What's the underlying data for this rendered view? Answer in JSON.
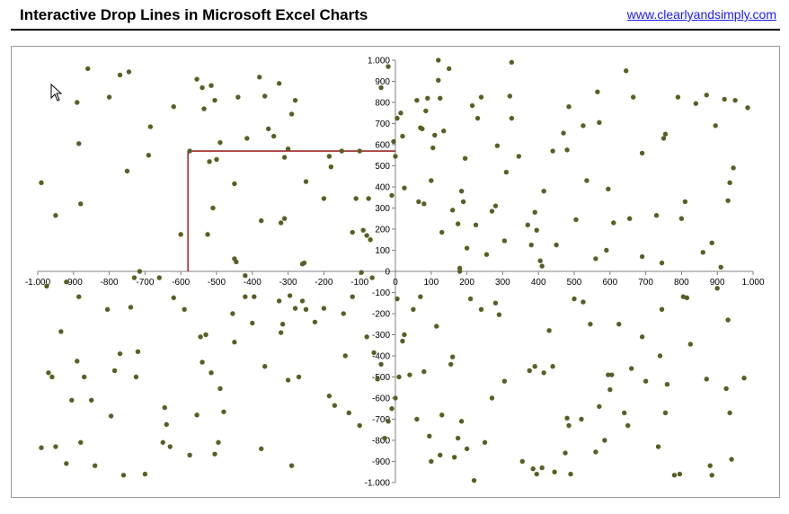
{
  "header": {
    "title": "Interactive Drop Lines in Microsoft Excel Charts",
    "link": "www.clearlyandsimply.com"
  },
  "colors": {
    "marker": "#5b5e23",
    "dropline": "#8b0000",
    "axis": "#808080"
  },
  "chart_data": {
    "type": "scatter",
    "title": "",
    "xlabel": "",
    "ylabel": "",
    "xlim": [
      -1000,
      1000
    ],
    "ylim": [
      -1000,
      1000
    ],
    "grid": false,
    "x_ticks": [
      "-1.000",
      "-900",
      "-800",
      "-700",
      "-600",
      "-500",
      "-400",
      "-300",
      "-200",
      "-100",
      "0",
      "100",
      "200",
      "300",
      "400",
      "500",
      "600",
      "700",
      "800",
      "900",
      "1.000"
    ],
    "y_ticks": [
      "1.000",
      "900",
      "800",
      "700",
      "600",
      "500",
      "400",
      "300",
      "200",
      "100",
      "0",
      "-100",
      "-200",
      "-300",
      "-400",
      "-500",
      "-600",
      "-700",
      "-800",
      "-900",
      "-1.000"
    ],
    "highlight_point": {
      "x": -580,
      "y": 570
    },
    "points": [
      [
        -990,
        420
      ],
      [
        -950,
        265
      ],
      [
        -920,
        -50
      ],
      [
        -890,
        800
      ],
      [
        -885,
        605
      ],
      [
        -880,
        320
      ],
      [
        -860,
        960
      ],
      [
        -800,
        825
      ],
      [
        -770,
        930
      ],
      [
        -750,
        475
      ],
      [
        -745,
        945
      ],
      [
        -730,
        -30
      ],
      [
        -715,
        0
      ],
      [
        -690,
        550
      ],
      [
        -685,
        685
      ],
      [
        -620,
        780
      ],
      [
        -600,
        175
      ],
      [
        -575,
        570
      ],
      [
        -555,
        910
      ],
      [
        -540,
        870
      ],
      [
        -535,
        770
      ],
      [
        -525,
        175
      ],
      [
        -520,
        520
      ],
      [
        -515,
        880
      ],
      [
        -510,
        300
      ],
      [
        -505,
        810
      ],
      [
        -500,
        530
      ],
      [
        -490,
        610
      ],
      [
        -450,
        415
      ],
      [
        -450,
        60
      ],
      [
        -445,
        45
      ],
      [
        -440,
        825
      ],
      [
        -420,
        -20
      ],
      [
        -415,
        630
      ],
      [
        -380,
        920
      ],
      [
        -375,
        240
      ],
      [
        -365,
        830
      ],
      [
        -355,
        675
      ],
      [
        -340,
        640
      ],
      [
        -325,
        890
      ],
      [
        -320,
        230
      ],
      [
        -310,
        540
      ],
      [
        -310,
        250
      ],
      [
        -300,
        580
      ],
      [
        -290,
        745
      ],
      [
        -280,
        810
      ],
      [
        -260,
        35
      ],
      [
        -255,
        40
      ],
      [
        -250,
        425
      ],
      [
        -200,
        345
      ],
      [
        -185,
        545
      ],
      [
        -180,
        495
      ],
      [
        -150,
        570
      ],
      [
        -120,
        185
      ],
      [
        -110,
        345
      ],
      [
        -100,
        570
      ],
      [
        -95,
        -5
      ],
      [
        -90,
        195
      ],
      [
        -80,
        170
      ],
      [
        -75,
        345
      ],
      [
        -70,
        150
      ],
      [
        -65,
        -30
      ],
      [
        -40,
        870
      ],
      [
        -20,
        970
      ],
      [
        -10,
        360
      ],
      [
        -5,
        615
      ],
      [
        0,
        545
      ],
      [
        5,
        725
      ],
      [
        15,
        750
      ],
      [
        20,
        640
      ],
      [
        25,
        395
      ],
      [
        60,
        810
      ],
      [
        65,
        330
      ],
      [
        70,
        680
      ],
      [
        75,
        675
      ],
      [
        80,
        320
      ],
      [
        85,
        760
      ],
      [
        90,
        820
      ],
      [
        100,
        430
      ],
      [
        105,
        585
      ],
      [
        110,
        645
      ],
      [
        120,
        1000
      ],
      [
        120,
        905
      ],
      [
        125,
        820
      ],
      [
        130,
        185
      ],
      [
        135,
        665
      ],
      [
        150,
        960
      ],
      [
        160,
        290
      ],
      [
        175,
        225
      ],
      [
        180,
        15
      ],
      [
        180,
        0
      ],
      [
        185,
        380
      ],
      [
        190,
        330
      ],
      [
        195,
        535
      ],
      [
        200,
        110
      ],
      [
        215,
        785
      ],
      [
        225,
        220
      ],
      [
        230,
        725
      ],
      [
        240,
        825
      ],
      [
        255,
        80
      ],
      [
        270,
        285
      ],
      [
        280,
        310
      ],
      [
        285,
        595
      ],
      [
        305,
        145
      ],
      [
        310,
        470
      ],
      [
        320,
        830
      ],
      [
        325,
        990
      ],
      [
        325,
        725
      ],
      [
        345,
        545
      ],
      [
        370,
        220
      ],
      [
        380,
        125
      ],
      [
        390,
        280
      ],
      [
        395,
        195
      ],
      [
        405,
        50
      ],
      [
        410,
        25
      ],
      [
        415,
        380
      ],
      [
        440,
        570
      ],
      [
        450,
        125
      ],
      [
        470,
        655
      ],
      [
        480,
        575
      ],
      [
        485,
        780
      ],
      [
        505,
        245
      ],
      [
        525,
        690
      ],
      [
        535,
        430
      ],
      [
        560,
        60
      ],
      [
        565,
        850
      ],
      [
        570,
        705
      ],
      [
        590,
        100
      ],
      [
        595,
        390
      ],
      [
        610,
        230
      ],
      [
        645,
        950
      ],
      [
        655,
        250
      ],
      [
        665,
        825
      ],
      [
        690,
        560
      ],
      [
        690,
        70
      ],
      [
        730,
        265
      ],
      [
        745,
        40
      ],
      [
        750,
        630
      ],
      [
        755,
        650
      ],
      [
        790,
        825
      ],
      [
        800,
        250
      ],
      [
        810,
        330
      ],
      [
        840,
        795
      ],
      [
        860,
        90
      ],
      [
        870,
        835
      ],
      [
        885,
        135
      ],
      [
        895,
        690
      ],
      [
        910,
        20
      ],
      [
        920,
        815
      ],
      [
        930,
        335
      ],
      [
        935,
        420
      ],
      [
        945,
        490
      ],
      [
        950,
        810
      ],
      [
        985,
        775
      ],
      [
        -990,
        -835
      ],
      [
        -975,
        -70
      ],
      [
        -970,
        -480
      ],
      [
        -960,
        -500
      ],
      [
        -950,
        -830
      ],
      [
        -935,
        -285
      ],
      [
        -920,
        -910
      ],
      [
        -905,
        -610
      ],
      [
        -890,
        -425
      ],
      [
        -885,
        -120
      ],
      [
        -880,
        -810
      ],
      [
        -870,
        -500
      ],
      [
        -850,
        -610
      ],
      [
        -840,
        -920
      ],
      [
        -805,
        -180
      ],
      [
        -795,
        -685
      ],
      [
        -785,
        -470
      ],
      [
        -770,
        -390
      ],
      [
        -760,
        -965
      ],
      [
        -740,
        -170
      ],
      [
        -725,
        -500
      ],
      [
        -720,
        -380
      ],
      [
        -700,
        -960
      ],
      [
        -660,
        -30
      ],
      [
        -650,
        -810
      ],
      [
        -645,
        -645
      ],
      [
        -640,
        -725
      ],
      [
        -630,
        -830
      ],
      [
        -620,
        -125
      ],
      [
        -590,
        -180
      ],
      [
        -575,
        -870
      ],
      [
        -555,
        -680
      ],
      [
        -545,
        -310
      ],
      [
        -540,
        -430
      ],
      [
        -530,
        -300
      ],
      [
        -515,
        -480
      ],
      [
        -505,
        -865
      ],
      [
        -495,
        -810
      ],
      [
        -490,
        -555
      ],
      [
        -480,
        -665
      ],
      [
        -455,
        -200
      ],
      [
        -450,
        -335
      ],
      [
        -420,
        -120
      ],
      [
        -400,
        -245
      ],
      [
        -395,
        -120
      ],
      [
        -375,
        -840
      ],
      [
        -365,
        -450
      ],
      [
        -325,
        -140
      ],
      [
        -320,
        -290
      ],
      [
        -315,
        -250
      ],
      [
        -300,
        -515
      ],
      [
        -295,
        -115
      ],
      [
        -290,
        -920
      ],
      [
        -280,
        -175
      ],
      [
        -270,
        -500
      ],
      [
        -260,
        -140
      ],
      [
        -250,
        -180
      ],
      [
        -225,
        -240
      ],
      [
        -200,
        -175
      ],
      [
        -185,
        -590
      ],
      [
        -170,
        -635
      ],
      [
        -145,
        -200
      ],
      [
        -140,
        -400
      ],
      [
        -130,
        -670
      ],
      [
        -120,
        -120
      ],
      [
        -100,
        -730
      ],
      [
        -80,
        -310
      ],
      [
        -60,
        -385
      ],
      [
        -50,
        -510
      ],
      [
        -40,
        -440
      ],
      [
        -30,
        -790
      ],
      [
        -20,
        -710
      ],
      [
        -10,
        -650
      ],
      [
        0,
        -600
      ],
      [
        5,
        -130
      ],
      [
        10,
        -500
      ],
      [
        20,
        -330
      ],
      [
        25,
        -300
      ],
      [
        40,
        -490
      ],
      [
        50,
        -180
      ],
      [
        60,
        -700
      ],
      [
        70,
        -120
      ],
      [
        80,
        -475
      ],
      [
        95,
        -780
      ],
      [
        100,
        -900
      ],
      [
        115,
        -260
      ],
      [
        125,
        -870
      ],
      [
        130,
        -680
      ],
      [
        155,
        -440
      ],
      [
        160,
        -405
      ],
      [
        165,
        -880
      ],
      [
        175,
        -790
      ],
      [
        185,
        -710
      ],
      [
        200,
        -840
      ],
      [
        210,
        -130
      ],
      [
        220,
        -990
      ],
      [
        240,
        -180
      ],
      [
        250,
        -810
      ],
      [
        270,
        -600
      ],
      [
        280,
        -150
      ],
      [
        290,
        -205
      ],
      [
        305,
        -520
      ],
      [
        355,
        -900
      ],
      [
        375,
        -470
      ],
      [
        385,
        -935
      ],
      [
        390,
        -450
      ],
      [
        395,
        -960
      ],
      [
        410,
        -930
      ],
      [
        415,
        -480
      ],
      [
        430,
        -280
      ],
      [
        440,
        -450
      ],
      [
        445,
        -950
      ],
      [
        475,
        -860
      ],
      [
        480,
        -695
      ],
      [
        485,
        -730
      ],
      [
        490,
        -960
      ],
      [
        500,
        -130
      ],
      [
        520,
        -700
      ],
      [
        525,
        -145
      ],
      [
        545,
        -250
      ],
      [
        560,
        -855
      ],
      [
        570,
        -640
      ],
      [
        585,
        -800
      ],
      [
        595,
        -490
      ],
      [
        600,
        -560
      ],
      [
        605,
        -490
      ],
      [
        625,
        -250
      ],
      [
        640,
        -670
      ],
      [
        650,
        -730
      ],
      [
        660,
        -460
      ],
      [
        690,
        -310
      ],
      [
        700,
        -520
      ],
      [
        735,
        -830
      ],
      [
        740,
        -400
      ],
      [
        745,
        -180
      ],
      [
        755,
        -670
      ],
      [
        760,
        -535
      ],
      [
        780,
        -965
      ],
      [
        795,
        -960
      ],
      [
        805,
        -120
      ],
      [
        815,
        -125
      ],
      [
        825,
        -345
      ],
      [
        870,
        -510
      ],
      [
        880,
        -920
      ],
      [
        885,
        -965
      ],
      [
        900,
        -80
      ],
      [
        925,
        -555
      ],
      [
        930,
        -230
      ],
      [
        935,
        -670
      ],
      [
        940,
        -890
      ],
      [
        975,
        -505
      ]
    ]
  }
}
